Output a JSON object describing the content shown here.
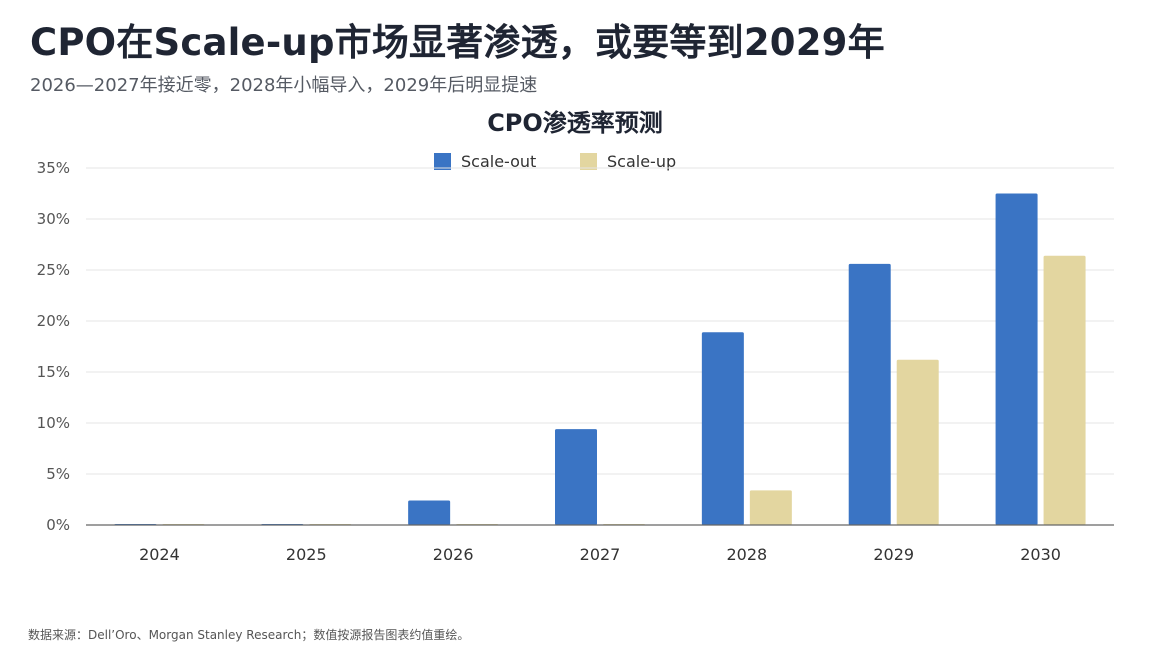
{
  "header": {
    "title": "CPO在Scale-up市场显著渗透，或要等到2029年",
    "subtitle": "2026—2027年接近零，2028年小幅导入，2029年后明显提速"
  },
  "source_note": "数据来源：Dell’Oro、Morgan Stanley Research；数值按源报告图表约值重绘。",
  "colors": {
    "scale_out": "#3a74c4",
    "scale_up": "#e3d6a0",
    "grid": "#e4e4e4",
    "axis": "#666666"
  },
  "chart_data": {
    "type": "bar",
    "title": "CPO渗透率预测",
    "xlabel": "",
    "ylabel": "",
    "categories": [
      "2024",
      "2025",
      "2026",
      "2027",
      "2028",
      "2029",
      "2030"
    ],
    "series": [
      {
        "name": "Scale-out",
        "values": [
          0.1,
          0.1,
          2.4,
          9.4,
          18.9,
          25.6,
          32.5
        ]
      },
      {
        "name": "Scale-up",
        "values": [
          0.1,
          0.1,
          0.1,
          0.1,
          3.4,
          16.2,
          26.4
        ]
      }
    ],
    "ylim": [
      0,
      35
    ],
    "yticks": [
      0,
      5,
      10,
      15,
      20,
      25,
      30,
      35
    ],
    "ytick_labels": [
      "0%",
      "5%",
      "10%",
      "15%",
      "20%",
      "25%",
      "30%",
      "35%"
    ],
    "grid": true,
    "legend_position": "top-center"
  }
}
